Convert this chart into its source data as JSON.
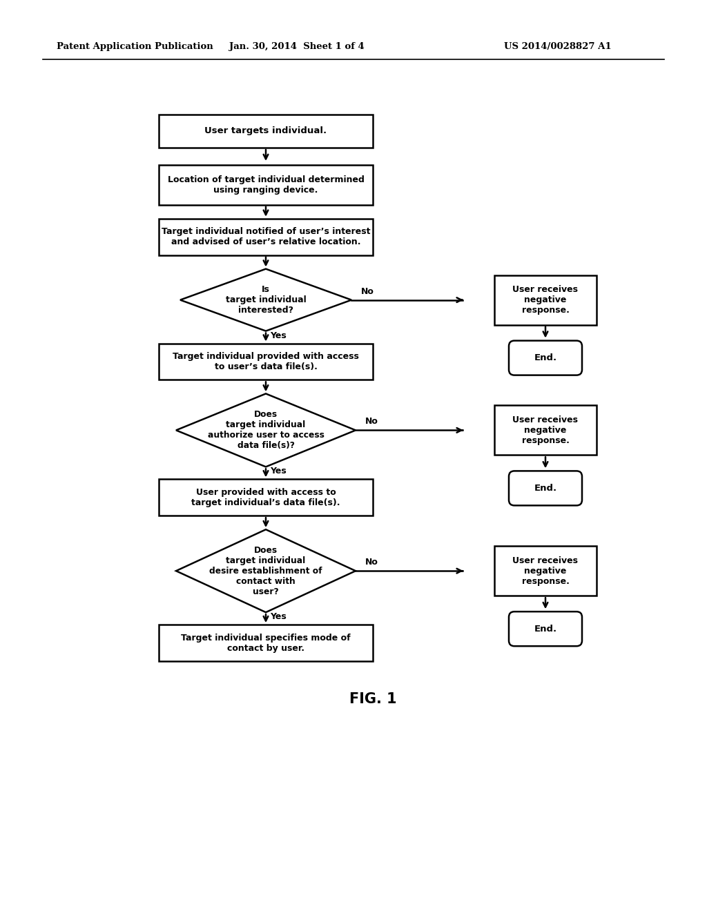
{
  "bg_color": "#ffffff",
  "header_left": "Patent Application Publication",
  "header_mid": "Jan. 30, 2014  Sheet 1 of 4",
  "header_right": "US 2014/0028827 A1",
  "fig_label": "FIG. 1",
  "line_color": "#000000",
  "text_color": "#000000"
}
